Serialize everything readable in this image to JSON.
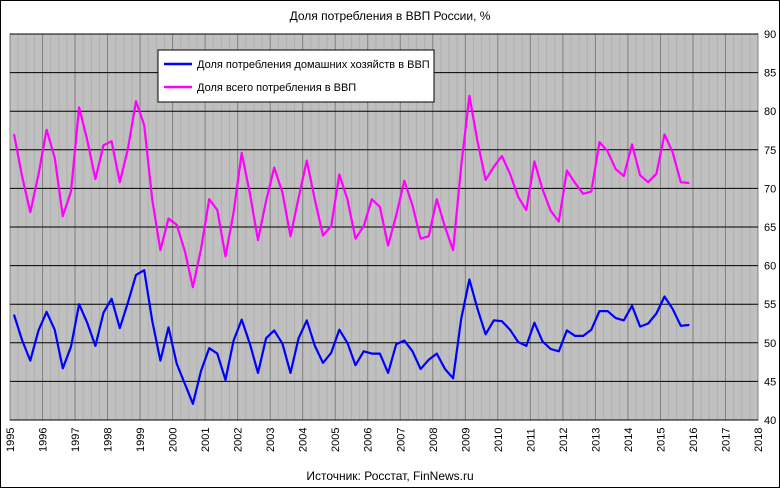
{
  "chart_data": {
    "type": "line",
    "title": "Доля потребления в ВВП России, %",
    "source": "Источник: Росстат, FinNews.ru",
    "xlim": [
      1995,
      2018
    ],
    "ylim": [
      40,
      90
    ],
    "x_ticks": [
      "1995",
      "1996",
      "1997",
      "1998",
      "1999",
      "2000",
      "2001",
      "2002",
      "2003",
      "2004",
      "2005",
      "2006",
      "2007",
      "2008",
      "2009",
      "2010",
      "2011",
      "2012",
      "2013",
      "2014",
      "2015",
      "2016",
      "2017",
      "2018"
    ],
    "y_ticks": [
      "40",
      "45",
      "50",
      "55",
      "60",
      "65",
      "70",
      "75",
      "80",
      "85",
      "90"
    ],
    "grid": true,
    "legend_position": "top-left",
    "series": [
      {
        "name": "Доля потребления домашних хозяйств в ВВП",
        "color": "#0000ff",
        "x": [
          1995.125,
          1995.375,
          1995.625,
          1995.875,
          1996.125,
          1996.375,
          1996.625,
          1996.875,
          1997.125,
          1997.375,
          1997.625,
          1997.875,
          1998.125,
          1998.375,
          1998.625,
          1998.875,
          1999.125,
          1999.375,
          1999.625,
          1999.875,
          2000.125,
          2000.375,
          2000.625,
          2000.875,
          2001.125,
          2001.375,
          2001.625,
          2001.875,
          2002.125,
          2002.375,
          2002.625,
          2002.875,
          2003.125,
          2003.375,
          2003.625,
          2003.875,
          2004.125,
          2004.375,
          2004.625,
          2004.875,
          2005.125,
          2005.375,
          2005.625,
          2005.875,
          2006.125,
          2006.375,
          2006.625,
          2006.875,
          2007.125,
          2007.375,
          2007.625,
          2007.875,
          2008.125,
          2008.375,
          2008.625,
          2008.875,
          2009.125,
          2009.375,
          2009.625,
          2009.875,
          2010.125,
          2010.375,
          2010.625,
          2010.875,
          2011.125,
          2011.375,
          2011.625,
          2011.875,
          2012.125,
          2012.375,
          2012.625,
          2012.875,
          2013.125,
          2013.375,
          2013.625,
          2013.875,
          2014.125,
          2014.375,
          2014.625,
          2014.875,
          2015.125,
          2015.375,
          2015.625,
          2015.875
        ],
        "values": [
          53.6,
          50.3,
          47.7,
          51.6,
          54.0,
          51.7,
          46.7,
          49.5,
          55.0,
          52.6,
          49.6,
          53.9,
          55.7,
          51.9,
          55.2,
          58.8,
          59.4,
          52.8,
          47.7,
          52.0,
          47.3,
          44.7,
          42.1,
          46.4,
          49.3,
          48.6,
          45.2,
          50.3,
          53.0,
          49.9,
          46.1,
          50.6,
          51.6,
          49.9,
          46.1,
          50.6,
          52.9,
          49.6,
          47.4,
          48.7,
          51.7,
          50.0,
          47.1,
          48.9,
          48.6,
          48.6,
          46.1,
          49.8,
          50.3,
          48.9,
          46.6,
          47.8,
          48.6,
          46.6,
          45.4,
          53.1,
          58.2,
          54.4,
          51.1,
          52.9,
          52.8,
          51.7,
          50.1,
          49.6,
          52.6,
          50.2,
          49.2,
          48.9,
          51.6,
          50.9,
          50.9,
          51.7,
          54.1,
          54.1,
          53.2,
          52.9,
          54.8,
          52.1,
          52.5,
          53.8,
          56.0,
          54.4,
          52.2,
          52.3
        ]
      },
      {
        "name": "Доля всего потребления в ВВП",
        "color": "#ff00ff",
        "x": [
          1995.125,
          1995.375,
          1995.625,
          1995.875,
          1996.125,
          1996.375,
          1996.625,
          1996.875,
          1997.125,
          1997.375,
          1997.625,
          1997.875,
          1998.125,
          1998.375,
          1998.625,
          1998.875,
          1999.125,
          1999.375,
          1999.625,
          1999.875,
          2000.125,
          2000.375,
          2000.625,
          2000.875,
          2001.125,
          2001.375,
          2001.625,
          2001.875,
          2002.125,
          2002.375,
          2002.625,
          2002.875,
          2003.125,
          2003.375,
          2003.625,
          2003.875,
          2004.125,
          2004.375,
          2004.625,
          2004.875,
          2005.125,
          2005.375,
          2005.625,
          2005.875,
          2006.125,
          2006.375,
          2006.625,
          2006.875,
          2007.125,
          2007.375,
          2007.625,
          2007.875,
          2008.125,
          2008.375,
          2008.625,
          2008.875,
          2009.125,
          2009.375,
          2009.625,
          2009.875,
          2010.125,
          2010.375,
          2010.625,
          2010.875,
          2011.125,
          2011.375,
          2011.625,
          2011.875,
          2012.125,
          2012.375,
          2012.625,
          2012.875,
          2013.125,
          2013.375,
          2013.625,
          2013.875,
          2014.125,
          2014.375,
          2014.625,
          2014.875,
          2015.125,
          2015.375,
          2015.625,
          2015.875
        ],
        "values": [
          77.0,
          71.5,
          66.9,
          71.8,
          77.6,
          74.0,
          66.4,
          69.6,
          80.5,
          76.3,
          71.2,
          75.6,
          76.1,
          70.8,
          75.1,
          81.3,
          78.2,
          68.5,
          62.0,
          66.1,
          65.3,
          61.9,
          57.2,
          62.2,
          68.6,
          67.2,
          61.2,
          66.9,
          74.6,
          69.4,
          63.3,
          68.4,
          72.7,
          69.5,
          63.8,
          68.8,
          73.6,
          68.5,
          63.9,
          65.1,
          71.8,
          68.6,
          63.5,
          65.1,
          68.6,
          67.6,
          62.6,
          66.5,
          71.0,
          67.8,
          63.5,
          63.8,
          68.6,
          65.0,
          62.0,
          72.9,
          82.0,
          76.1,
          71.1,
          72.8,
          74.2,
          71.9,
          68.9,
          67.2,
          73.5,
          69.9,
          67.1,
          65.7,
          72.3,
          70.7,
          69.3,
          69.6,
          76.0,
          74.8,
          72.5,
          71.6,
          75.7,
          71.7,
          70.8,
          71.9,
          77.0,
          74.7,
          70.8,
          70.7
        ]
      }
    ]
  }
}
